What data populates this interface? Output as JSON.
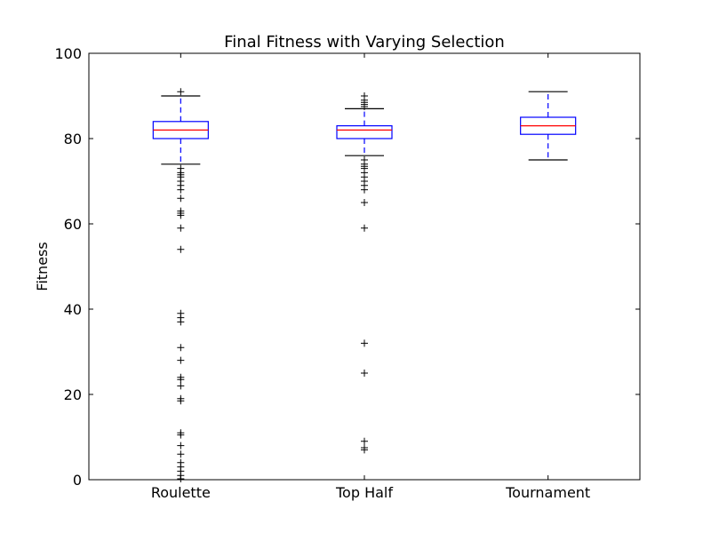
{
  "chart_data": {
    "type": "box",
    "title": "Final Fitness with Varying Selection",
    "xlabel": "",
    "ylabel": "Fitness",
    "ylim": [
      0,
      100
    ],
    "yticks": [
      0,
      20,
      40,
      60,
      80,
      100
    ],
    "grid": false,
    "categories": [
      "Roulette",
      "Top Half",
      "Tournament"
    ],
    "boxes": [
      {
        "category": "Roulette",
        "whisker_low": 74,
        "q1": 80,
        "median": 82,
        "q3": 84,
        "whisker_high": 90,
        "outliers": [
          91,
          73,
          72,
          71.5,
          71,
          70,
          69,
          68,
          66,
          63,
          62.5,
          62,
          59,
          54,
          39,
          38,
          37,
          31,
          28,
          24,
          23.5,
          22,
          19,
          18.5,
          11,
          10.5,
          8,
          6,
          4,
          3,
          2,
          1,
          0.2
        ]
      },
      {
        "category": "Top Half",
        "whisker_low": 76,
        "q1": 80,
        "median": 82,
        "q3": 83,
        "whisker_high": 87,
        "outliers": [
          90,
          89,
          88.5,
          88,
          87.5,
          75,
          74,
          73.5,
          73,
          72,
          71,
          70,
          69,
          68,
          65,
          59,
          32,
          25,
          9,
          7.5,
          7
        ]
      },
      {
        "category": "Tournament",
        "whisker_low": 75,
        "q1": 81,
        "median": 83,
        "q3": 85,
        "whisker_high": 91,
        "outliers": []
      }
    ],
    "colors": {
      "box": "#0000ff",
      "median": "#ff0000",
      "whisker": "#0000ff",
      "cap": "#000000",
      "flier": "#000000"
    }
  }
}
